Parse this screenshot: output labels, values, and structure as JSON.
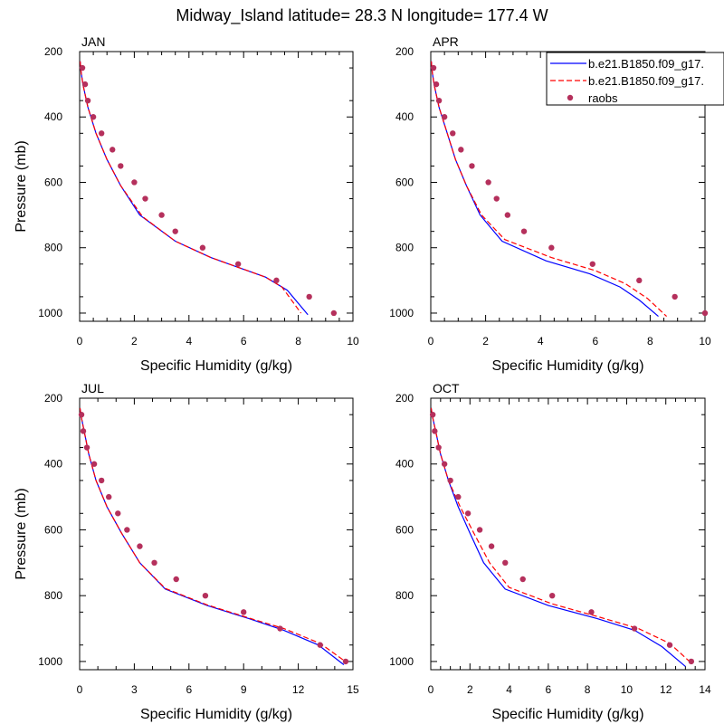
{
  "figure": {
    "title": "Midway_Island  latitude= 28.3 N longitude= 177.4 W"
  },
  "legend": {
    "entries": [
      {
        "label": "b.e21.B1850.f09_g17.",
        "style": "solid",
        "color": "#0000ff"
      },
      {
        "label": "b.e21.B1850.f09_g17.",
        "style": "dashed",
        "color": "#ff0000"
      },
      {
        "label": "raobs",
        "style": "marker",
        "color": "#b5305c"
      }
    ]
  },
  "chart_data": [
    {
      "type": "line",
      "panel": "JAN",
      "xlabel": "Specific Humidity (g/kg)",
      "ylabel": "Pressure (mb)",
      "xlim": [
        0,
        10
      ],
      "xticks": [
        0,
        2,
        4,
        6,
        8,
        10
      ],
      "ylim": [
        200,
        1025
      ],
      "yticks": [
        200,
        400,
        600,
        800,
        1000
      ],
      "y_reversed": true,
      "series": [
        {
          "style": "solid",
          "color": "#0000ff",
          "x": [
            0.02,
            0.05,
            0.12,
            0.3,
            0.6,
            1.0,
            1.5,
            2.2,
            3.5,
            4.8,
            5.8,
            6.8,
            7.6,
            8.35
          ],
          "y": [
            230,
            260,
            300,
            370,
            450,
            530,
            610,
            700,
            780,
            830,
            860,
            890,
            930,
            1005
          ]
        },
        {
          "style": "dashed",
          "color": "#ff0000",
          "x": [
            0.02,
            0.05,
            0.12,
            0.3,
            0.6,
            1.0,
            1.5,
            2.3,
            3.5,
            4.8,
            5.8,
            6.8,
            7.4,
            8.1
          ],
          "y": [
            230,
            260,
            300,
            370,
            450,
            530,
            610,
            705,
            780,
            830,
            860,
            890,
            920,
            1000
          ]
        },
        {
          "style": "marker",
          "color": "#b5305c",
          "x": [
            0.1,
            0.2,
            0.3,
            0.5,
            0.8,
            1.2,
            1.5,
            2.0,
            2.4,
            3.0,
            3.5,
            4.5,
            5.8,
            7.2,
            8.4,
            9.3
          ],
          "y": [
            250,
            300,
            350,
            400,
            450,
            500,
            550,
            600,
            650,
            700,
            750,
            800,
            850,
            900,
            950,
            1000
          ]
        }
      ]
    },
    {
      "type": "line",
      "panel": "APR",
      "xlabel": "Specific Humidity (g/kg)",
      "ylabel": "",
      "xlim": [
        0,
        10
      ],
      "xticks": [
        0,
        2,
        4,
        6,
        8,
        10
      ],
      "ylim": [
        200,
        1025
      ],
      "yticks": [
        200,
        400,
        600,
        800,
        1000
      ],
      "y_reversed": true,
      "series": [
        {
          "style": "solid",
          "color": "#0000ff",
          "x": [
            0.02,
            0.05,
            0.12,
            0.3,
            0.6,
            0.9,
            1.3,
            1.8,
            2.6,
            4.2,
            5.8,
            6.9,
            7.6,
            8.3
          ],
          "y": [
            230,
            260,
            300,
            370,
            450,
            530,
            610,
            700,
            780,
            840,
            880,
            920,
            960,
            1010
          ]
        },
        {
          "style": "dashed",
          "color": "#ff0000",
          "x": [
            0.02,
            0.05,
            0.12,
            0.3,
            0.6,
            0.9,
            1.3,
            1.85,
            2.7,
            4.4,
            6.0,
            7.1,
            7.9,
            8.6
          ],
          "y": [
            230,
            260,
            300,
            370,
            450,
            530,
            610,
            700,
            775,
            830,
            870,
            910,
            955,
            1010
          ]
        },
        {
          "style": "marker",
          "color": "#b5305c",
          "x": [
            0.1,
            0.2,
            0.3,
            0.5,
            0.8,
            1.1,
            1.5,
            2.1,
            2.4,
            2.8,
            3.4,
            4.4,
            5.9,
            7.6,
            8.9,
            10.0
          ],
          "y": [
            250,
            300,
            350,
            400,
            450,
            500,
            550,
            600,
            650,
            700,
            750,
            800,
            850,
            900,
            950,
            1000
          ]
        }
      ]
    },
    {
      "type": "line",
      "panel": "JUL",
      "xlabel": "Specific Humidity (g/kg)",
      "ylabel": "Pressure (mb)",
      "xlim": [
        0,
        15
      ],
      "xticks": [
        0,
        3,
        6,
        9,
        12,
        15
      ],
      "ylim": [
        200,
        1025
      ],
      "yticks": [
        200,
        400,
        600,
        800,
        1000
      ],
      "y_reversed": true,
      "series": [
        {
          "style": "solid",
          "color": "#0000ff",
          "x": [
            0.02,
            0.1,
            0.25,
            0.5,
            0.9,
            1.5,
            2.3,
            3.3,
            4.7,
            7.0,
            9.3,
            11.2,
            13.1,
            14.5
          ],
          "y": [
            230,
            260,
            300,
            370,
            450,
            530,
            610,
            700,
            780,
            830,
            870,
            905,
            950,
            1010
          ]
        },
        {
          "style": "dashed",
          "color": "#ff0000",
          "x": [
            0.02,
            0.1,
            0.25,
            0.5,
            0.9,
            1.5,
            2.3,
            3.3,
            4.7,
            7.0,
            9.3,
            11.2,
            13.2,
            14.7
          ],
          "y": [
            230,
            260,
            300,
            370,
            450,
            530,
            610,
            700,
            778,
            828,
            868,
            900,
            945,
            1005
          ]
        },
        {
          "style": "marker",
          "color": "#b5305c",
          "x": [
            0.1,
            0.2,
            0.4,
            0.8,
            1.2,
            1.6,
            2.1,
            2.6,
            3.3,
            4.1,
            5.3,
            6.9,
            9.0,
            11.0,
            13.2,
            14.6
          ],
          "y": [
            250,
            300,
            350,
            400,
            450,
            500,
            550,
            600,
            650,
            700,
            750,
            800,
            850,
            900,
            950,
            1000
          ]
        }
      ]
    },
    {
      "type": "line",
      "panel": "OCT",
      "xlabel": "Specific Humidity (g/kg)",
      "ylabel": "",
      "xlim": [
        0,
        14
      ],
      "xticks": [
        0,
        2,
        4,
        6,
        8,
        10,
        12,
        14
      ],
      "ylim": [
        200,
        1025
      ],
      "yticks": [
        200,
        400,
        600,
        800,
        1000
      ],
      "y_reversed": true,
      "series": [
        {
          "style": "solid",
          "color": "#0000ff",
          "x": [
            0.02,
            0.1,
            0.25,
            0.5,
            0.9,
            1.4,
            2.0,
            2.7,
            3.8,
            6.0,
            8.5,
            10.4,
            11.8,
            13.0
          ],
          "y": [
            230,
            260,
            300,
            370,
            450,
            530,
            610,
            700,
            780,
            830,
            870,
            905,
            955,
            1015
          ]
        },
        {
          "style": "dashed",
          "color": "#ff0000",
          "x": [
            0.02,
            0.1,
            0.25,
            0.5,
            0.9,
            1.5,
            2.2,
            3.0,
            4.0,
            6.2,
            8.6,
            10.6,
            12.2,
            13.3
          ],
          "y": [
            230,
            260,
            300,
            370,
            450,
            530,
            610,
            700,
            775,
            825,
            865,
            900,
            945,
            1005
          ]
        },
        {
          "style": "marker",
          "color": "#b5305c",
          "x": [
            0.1,
            0.2,
            0.4,
            0.7,
            1.0,
            1.4,
            1.9,
            2.5,
            3.1,
            3.8,
            4.7,
            6.2,
            8.2,
            10.4,
            12.2,
            13.3
          ],
          "y": [
            250,
            300,
            350,
            400,
            450,
            500,
            550,
            600,
            650,
            700,
            750,
            800,
            850,
            900,
            950,
            1000
          ]
        }
      ]
    }
  ]
}
